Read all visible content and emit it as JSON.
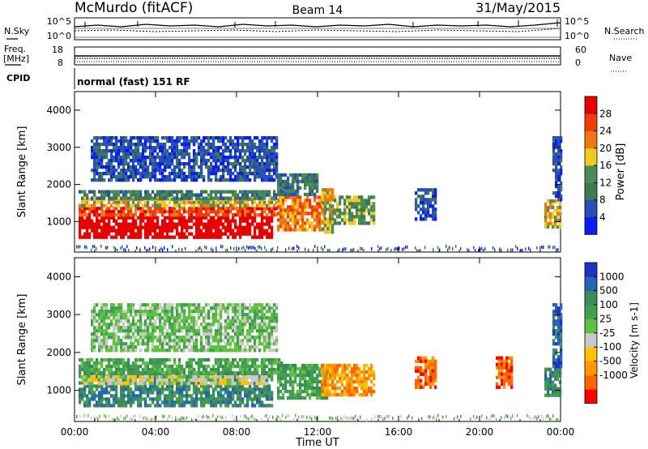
{
  "header": {
    "station": "McMurdo (fitACF)",
    "beam": "Beam 14",
    "date": "31/May/2015"
  },
  "aux": {
    "nsky_label": "N.Sky",
    "nsearch_label": "N.Search",
    "freq_label_top": "Freq.",
    "freq_label_unit": "[MHz]",
    "nave_label": "Nave",
    "cpid_label": "CPID",
    "noise_ticks": [
      "10^5",
      "10^0"
    ],
    "freq_ticks": [
      "18",
      "8"
    ],
    "nave_ticks": [
      "60",
      "0"
    ],
    "cpid_text": "normal (fast) 151 RF"
  },
  "colors": {
    "power": [
      "#0a1ef0",
      "#2850b4",
      "#3c7a50",
      "#4a8c5a",
      "#f0c81e",
      "#f07814",
      "#f03c0a",
      "#e60000"
    ],
    "velocity": [
      "#ff0000",
      "#ff6400",
      "#ff9600",
      "#ffc000",
      "#c8c8c8",
      "#60c040",
      "#40a050",
      "#3c8c5a",
      "#2864b4",
      "#1e32c8"
    ]
  },
  "chart_data": [
    {
      "type": "heatmap",
      "name": "Power",
      "xlabel": "",
      "ylabel": "Slant Range [km]",
      "x_ticks": [
        "00:00",
        "04:00",
        "08:00",
        "12:00",
        "16:00",
        "20:00",
        "00:00"
      ],
      "y_ticks": [
        1000,
        2000,
        3000,
        4000
      ],
      "ylim": [
        180,
        4500
      ],
      "x_range_hours": [
        0,
        24
      ],
      "colorbar_label": "Power [dB]",
      "colorbar_ticks": [
        4,
        8,
        12,
        16,
        20,
        24,
        28
      ],
      "regions": [
        {
          "t": [
            0.2,
            9.8
          ],
          "r": [
            550,
            1150
          ],
          "level": 8
        },
        {
          "t": [
            0.2,
            10.0
          ],
          "r": [
            1150,
            1400
          ],
          "level": 6
        },
        {
          "t": [
            0.2,
            10.3
          ],
          "r": [
            1400,
            1650
          ],
          "level": 4
        },
        {
          "t": [
            0.2,
            10.3
          ],
          "r": [
            1650,
            1850
          ],
          "level": 2
        },
        {
          "t": [
            10.0,
            12.3
          ],
          "r": [
            800,
            1700
          ],
          "level": 5
        },
        {
          "t": [
            10.0,
            12.0
          ],
          "r": [
            1700,
            2300
          ],
          "level": 2
        },
        {
          "t": [
            12.2,
            12.8
          ],
          "r": [
            750,
            1900
          ],
          "level": 4
        },
        {
          "t": [
            12.8,
            14.8
          ],
          "r": [
            1000,
            1700
          ],
          "level": 3
        },
        {
          "t": [
            0.8,
            10.0
          ],
          "r": [
            2150,
            3300
          ],
          "level": 1
        },
        {
          "t": [
            16.8,
            17.8
          ],
          "r": [
            1100,
            1900
          ],
          "level": 1
        },
        {
          "t": [
            23.2,
            24.0
          ],
          "r": [
            850,
            1600
          ],
          "level": 4
        },
        {
          "t": [
            23.6,
            24.0
          ],
          "r": [
            1600,
            3300
          ],
          "level": 1
        }
      ]
    },
    {
      "type": "heatmap",
      "name": "Velocity",
      "xlabel": "Time UT",
      "ylabel": "Slant Range [km]",
      "x_ticks": [
        "00:00",
        "04:00",
        "08:00",
        "12:00",
        "16:00",
        "20:00",
        "00:00"
      ],
      "y_ticks": [
        1000,
        2000,
        3000,
        4000
      ],
      "ylim": [
        180,
        4500
      ],
      "x_range_hours": [
        0,
        24
      ],
      "colorbar_label": "Velocity [m s-1]",
      "colorbar_ticks": [
        "1000",
        "500",
        "100",
        "25",
        "-25",
        "-100",
        "-500",
        "-1000"
      ],
      "regions": [
        {
          "t": [
            0.2,
            9.8
          ],
          "r": [
            600,
            1500
          ],
          "level": 7
        },
        {
          "t": [
            0.2,
            10.2
          ],
          "r": [
            1500,
            1850
          ],
          "level": 6
        },
        {
          "t": [
            0.3,
            9.5
          ],
          "r": [
            1150,
            1400
          ],
          "level": 4
        },
        {
          "t": [
            10.0,
            12.5
          ],
          "r": [
            800,
            1700
          ],
          "level": 6
        },
        {
          "t": [
            12.2,
            14.8
          ],
          "r": [
            850,
            1700
          ],
          "level": 2
        },
        {
          "t": [
            0.8,
            10.0
          ],
          "r": [
            2100,
            3300
          ],
          "level": 5
        },
        {
          "t": [
            16.8,
            17.8
          ],
          "r": [
            1100,
            1900
          ],
          "level": 1
        },
        {
          "t": [
            20.8,
            21.6
          ],
          "r": [
            1100,
            1900
          ],
          "level": 1
        },
        {
          "t": [
            23.2,
            24.0
          ],
          "r": [
            850,
            1600
          ],
          "level": 7
        },
        {
          "t": [
            23.6,
            24.0
          ],
          "r": [
            1600,
            3300
          ],
          "level": 8
        }
      ]
    }
  ]
}
